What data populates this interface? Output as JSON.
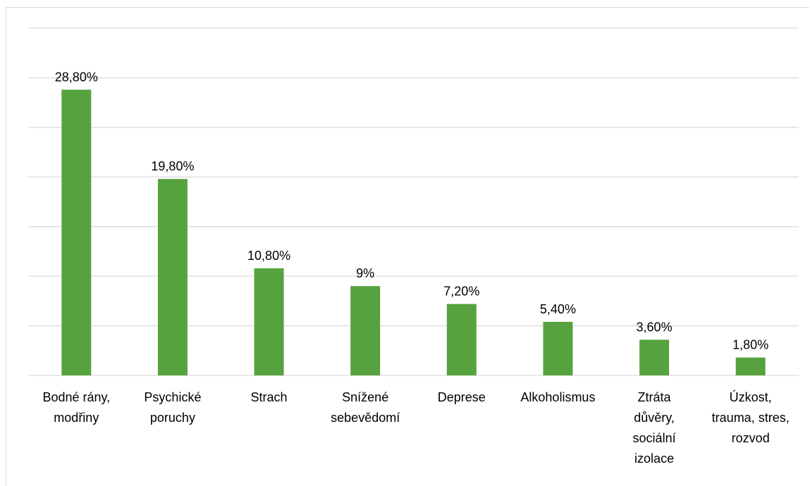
{
  "chart_data": {
    "type": "bar",
    "categories": [
      [
        "Bodné rány,",
        "modřiny"
      ],
      [
        "Psychické",
        "poruchy"
      ],
      [
        "Strach"
      ],
      [
        "Snížené",
        "sebevědomí"
      ],
      [
        "Deprese"
      ],
      [
        "Alkoholismus"
      ],
      [
        "Ztráta",
        "důvěry,",
        "sociální",
        "izolace"
      ],
      [
        "Úzkost,",
        "trauma, stres,",
        "rozvod"
      ]
    ],
    "values": [
      28.8,
      19.8,
      10.8,
      9,
      7.2,
      5.4,
      3.6,
      1.8
    ],
    "data_labels": [
      "28,80%",
      "19,80%",
      "10,80%",
      "9%",
      "7,20%",
      "5,40%",
      "3,60%",
      "1,80%"
    ],
    "title": "",
    "xlabel": "",
    "ylabel": "",
    "ylim": [
      0,
      35
    ],
    "grid": true,
    "legend": "none",
    "bar_color": "#56a23f",
    "grid_color": "#d9d9d9"
  }
}
